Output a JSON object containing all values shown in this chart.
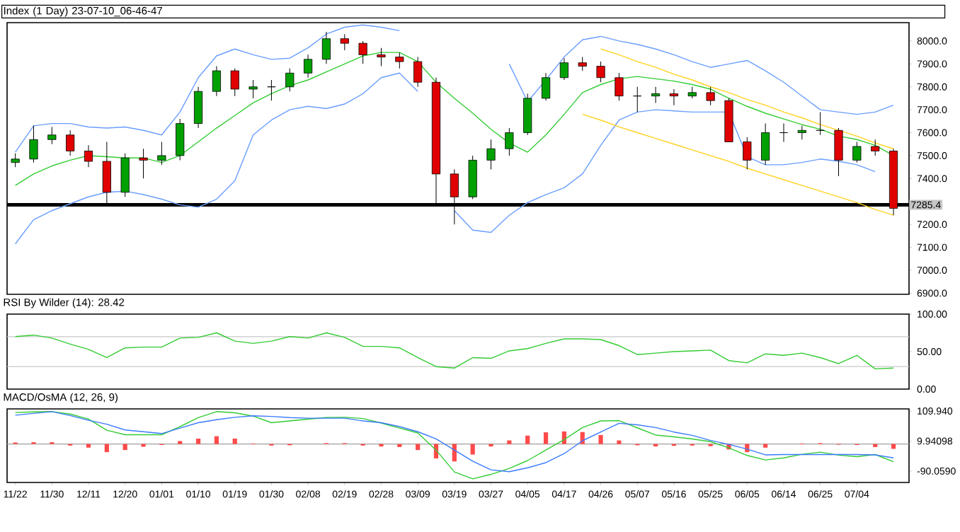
{
  "chart_data": [
    {
      "type": "candlestick",
      "title": "Index (1 Day) 23-07-10_06-46-47",
      "ohlc": [
        [
          7470,
          7510,
          7450,
          7485
        ],
        [
          7485,
          7630,
          7470,
          7570
        ],
        [
          7570,
          7625,
          7550,
          7590
        ],
        [
          7590,
          7610,
          7500,
          7520
        ],
        [
          7520,
          7545,
          7450,
          7475
        ],
        [
          7475,
          7560,
          7290,
          7340
        ],
        [
          7340,
          7510,
          7320,
          7490
        ],
        [
          7490,
          7530,
          7400,
          7480
        ],
        [
          7480,
          7560,
          7460,
          7500
        ],
        [
          7500,
          7660,
          7480,
          7640
        ],
        [
          7640,
          7800,
          7620,
          7780
        ],
        [
          7780,
          7890,
          7760,
          7870
        ],
        [
          7870,
          7880,
          7760,
          7790
        ],
        [
          7790,
          7830,
          7750,
          7800
        ],
        [
          7800,
          7830,
          7740,
          7800
        ],
        [
          7800,
          7880,
          7780,
          7860
        ],
        [
          7860,
          7940,
          7840,
          7920
        ],
        [
          7920,
          8040,
          7900,
          8010
        ],
        [
          8010,
          8030,
          7960,
          7990
        ],
        [
          7990,
          8000,
          7900,
          7940
        ],
        [
          7940,
          7970,
          7890,
          7930
        ],
        [
          7930,
          7950,
          7880,
          7910
        ],
        [
          7910,
          7930,
          7800,
          7820
        ],
        [
          7820,
          7840,
          7290,
          7420
        ],
        [
          7420,
          7440,
          7200,
          7320
        ],
        [
          7320,
          7500,
          7310,
          7480
        ],
        [
          7480,
          7570,
          7440,
          7530
        ],
        [
          7530,
          7620,
          7500,
          7600
        ],
        [
          7600,
          7770,
          7590,
          7750
        ],
        [
          7750,
          7860,
          7740,
          7840
        ],
        [
          7840,
          7925,
          7830,
          7905
        ],
        [
          7905,
          7930,
          7870,
          7890
        ],
        [
          7890,
          7910,
          7820,
          7840
        ],
        [
          7840,
          7860,
          7740,
          7760
        ],
        [
          7760,
          7800,
          7690,
          7760
        ],
        [
          7760,
          7800,
          7730,
          7770
        ],
        [
          7770,
          7790,
          7720,
          7760
        ],
        [
          7760,
          7800,
          7750,
          7775
        ],
        [
          7775,
          7800,
          7720,
          7740
        ],
        [
          7740,
          7750,
          7560,
          7560
        ],
        [
          7560,
          7580,
          7440,
          7480
        ],
        [
          7480,
          7640,
          7460,
          7600
        ],
        [
          7600,
          7640,
          7560,
          7600
        ],
        [
          7600,
          7630,
          7570,
          7610
        ],
        [
          7610,
          7690,
          7590,
          7610
        ],
        [
          7610,
          7620,
          7410,
          7480
        ],
        [
          7480,
          7560,
          7470,
          7540
        ],
        [
          7540,
          7570,
          7500,
          7520
        ],
        [
          7520,
          7530,
          7240,
          7270
        ]
      ],
      "series": [
        {
          "type": "line",
          "color": "#6a9eff",
          "values": [
            7515,
            7630,
            7640,
            7640,
            7625,
            7620,
            7625,
            7610,
            7590,
            7690,
            7840,
            7935,
            7965,
            7940,
            7920,
            7925,
            7970,
            8030,
            8060,
            8070,
            8060,
            8045,
            null,
            null,
            null,
            null,
            null,
            7900,
            7735,
            7830,
            7930,
            8005,
            8020,
            8000,
            7985,
            7965,
            7940,
            7910,
            7885,
            7900,
            7915,
            7870,
            7820,
            7760,
            7700,
            7690,
            7680,
            7690,
            7720
          ]
        },
        {
          "type": "line",
          "color": "#33cc33",
          "values": [
            7370,
            7420,
            7455,
            7480,
            7500,
            7495,
            7490,
            7490,
            7470,
            7500,
            7560,
            7620,
            7675,
            7730,
            7770,
            7805,
            7830,
            7865,
            7900,
            7935,
            7950,
            7950,
            7910,
            7820,
            7750,
            7685,
            7615,
            7555,
            7515,
            7590,
            7680,
            7775,
            7810,
            7835,
            7845,
            7835,
            7825,
            7810,
            7790,
            7750,
            7715,
            7685,
            7660,
            7635,
            7615,
            7585,
            7570,
            7545,
            7500
          ]
        },
        {
          "type": "line",
          "color": "#6a9eff",
          "values": [
            7115,
            7220,
            7260,
            7290,
            7320,
            7340,
            7345,
            7330,
            7310,
            7285,
            7275,
            7310,
            7390,
            7590,
            7655,
            7700,
            7715,
            7705,
            7725,
            7770,
            7840,
            7860,
            7780,
            null,
            7260,
            7175,
            7165,
            7240,
            7295,
            7330,
            7360,
            7420,
            7545,
            7655,
            7690,
            7700,
            7695,
            7690,
            7690,
            7690,
            7495,
            7460,
            7460,
            7470,
            7485,
            7475,
            7460,
            7430,
            null
          ]
        },
        {
          "type": "line",
          "color": "#ffd21f",
          "values": [
            null,
            null,
            null,
            null,
            null,
            null,
            null,
            null,
            null,
            null,
            null,
            null,
            null,
            null,
            null,
            null,
            null,
            null,
            null,
            null,
            null,
            null,
            null,
            null,
            null,
            null,
            null,
            null,
            null,
            null,
            null,
            null,
            7965,
            7940,
            7910,
            7885,
            7855,
            7830,
            7800,
            7775,
            7745,
            7720,
            7690,
            7665,
            7635,
            7610,
            7585,
            7555,
            7530
          ]
        },
        {
          "type": "line",
          "color": "#ffd21f",
          "values": [
            null,
            null,
            null,
            null,
            null,
            null,
            null,
            null,
            null,
            null,
            null,
            null,
            null,
            null,
            null,
            null,
            null,
            null,
            null,
            null,
            null,
            null,
            null,
            null,
            null,
            null,
            null,
            null,
            null,
            null,
            null,
            7680,
            7655,
            7625,
            7600,
            7575,
            7550,
            7525,
            7500,
            7475,
            7445,
            7420,
            7395,
            7370,
            7345,
            7320,
            7295,
            7265,
            7240
          ]
        }
      ],
      "ylim": [
        6895,
        8080
      ],
      "yticks": [
        {
          "value": 6900,
          "label": "6900.0"
        },
        {
          "value": 7000,
          "label": "7000.0"
        },
        {
          "value": 7100,
          "label": "7100.0"
        },
        {
          "value": 7200,
          "label": "7200.0"
        },
        {
          "value": 7400,
          "label": "7400.0"
        },
        {
          "value": 7500,
          "label": "7500.0"
        },
        {
          "value": 7600,
          "label": "7600.0"
        },
        {
          "value": 7700,
          "label": "7700.0"
        },
        {
          "value": 7800,
          "label": "7800.0"
        },
        {
          "value": 7900,
          "label": "7900.0"
        },
        {
          "value": 8000,
          "label": "8000.0"
        }
      ],
      "ref_lines": [
        {
          "axis": "y",
          "value": 7285.4,
          "label": "7285.4",
          "color": "#000000"
        }
      ],
      "tick_labels": "y"
    },
    {
      "type": "line",
      "title": "RSI By Wilder (14): 28.42",
      "series": [
        {
          "color": "#33cc33",
          "values": [
            70,
            72,
            68,
            60,
            53,
            42,
            55,
            56,
            56,
            68,
            69,
            75,
            64,
            61,
            64,
            70,
            68,
            75,
            69,
            57,
            57,
            55,
            42,
            30,
            28,
            42,
            41,
            51,
            54,
            61,
            67,
            67,
            66,
            58,
            46,
            48,
            50,
            51,
            52,
            38,
            35,
            47,
            45,
            48,
            42,
            34,
            45,
            27,
            28
          ]
        }
      ],
      "ylim": [
        0,
        100
      ],
      "yticks": [
        {
          "value": 0,
          "label": "0.00"
        },
        {
          "value": 50,
          "label": "50.00"
        },
        {
          "value": 100,
          "label": "100.00"
        }
      ],
      "ref_lines": [
        {
          "axis": "y",
          "value": 30,
          "color": "#c8c8c8"
        },
        {
          "axis": "y",
          "value": 70,
          "color": "#c8c8c8"
        }
      ],
      "tick_labels": "y"
    },
    {
      "type": "line",
      "title": "MACD/OsMA (12, 26, 9)",
      "categories": [
        "11/22",
        null,
        "11/30",
        null,
        "12/11",
        null,
        "12/20",
        null,
        "01/01",
        null,
        "01/10",
        null,
        "01/19",
        null,
        "01/30",
        null,
        "02/08",
        null,
        "02/19",
        null,
        "02/28",
        null,
        "03/09",
        null,
        "03/19",
        null,
        "03/27",
        null,
        "04/05",
        null,
        "04/17",
        null,
        "04/26",
        null,
        "05/07",
        null,
        "05/16",
        null,
        "05/25",
        null,
        "06/05",
        null,
        "06/14",
        null,
        "06/25",
        null,
        "07/04",
        null,
        null
      ],
      "series": [
        {
          "type": "bar",
          "color": "#ff4a4a",
          "values": [
            5,
            6,
            6,
            -5,
            -12,
            -27,
            -20,
            -9,
            -3,
            10,
            18,
            26,
            18,
            2,
            -5,
            -4,
            null,
            3,
            3,
            -5,
            -8,
            -10,
            -20,
            -48,
            -58,
            -35,
            -8,
            12,
            28,
            39,
            42,
            40,
            30,
            12,
            -4,
            -8,
            -6,
            -5,
            -7,
            -18,
            -27,
            -12,
            null,
            2,
            3,
            -2,
            -3,
            -10,
            -16
          ]
        },
        {
          "type": "line",
          "color": "#33cc33",
          "values": [
            105,
            107,
            108,
            100,
            83,
            46,
            31,
            31,
            31,
            58,
            88,
            108,
            104,
            93,
            71,
            77,
            83,
            88,
            89,
            85,
            70,
            53,
            37,
            -20,
            -93,
            -116,
            -101,
            -81,
            -55,
            -20,
            15,
            55,
            77,
            78,
            54,
            30,
            24,
            17,
            8,
            -13,
            -38,
            -53,
            -46,
            -34,
            -27,
            -37,
            -42,
            -35,
            -59
          ]
        },
        {
          "type": "line",
          "color": "#3a7bff",
          "values": [
            96,
            102,
            108,
            95,
            79,
            66,
            47,
            41,
            35,
            53,
            71,
            81,
            89,
            94,
            92,
            88,
            86,
            86,
            86,
            77,
            71,
            58,
            41,
            17,
            -20,
            -57,
            -86,
            -92,
            -79,
            -62,
            -32,
            11,
            40,
            69,
            64,
            55,
            40,
            29,
            12,
            -1,
            -17,
            -36,
            -35,
            -35,
            -35,
            -35,
            -35,
            -36,
            -46
          ]
        }
      ],
      "ylim": [
        -128,
        117
      ],
      "yticks": [
        {
          "value": -90.059,
          "label": "-90.0590"
        },
        {
          "value": 9.94098,
          "label": "9.94098"
        },
        {
          "value": 109.94,
          "label": "109.940"
        }
      ],
      "ref_lines": [
        {
          "axis": "y",
          "value": 0,
          "color": "#a0a0a0"
        }
      ]
    }
  ]
}
